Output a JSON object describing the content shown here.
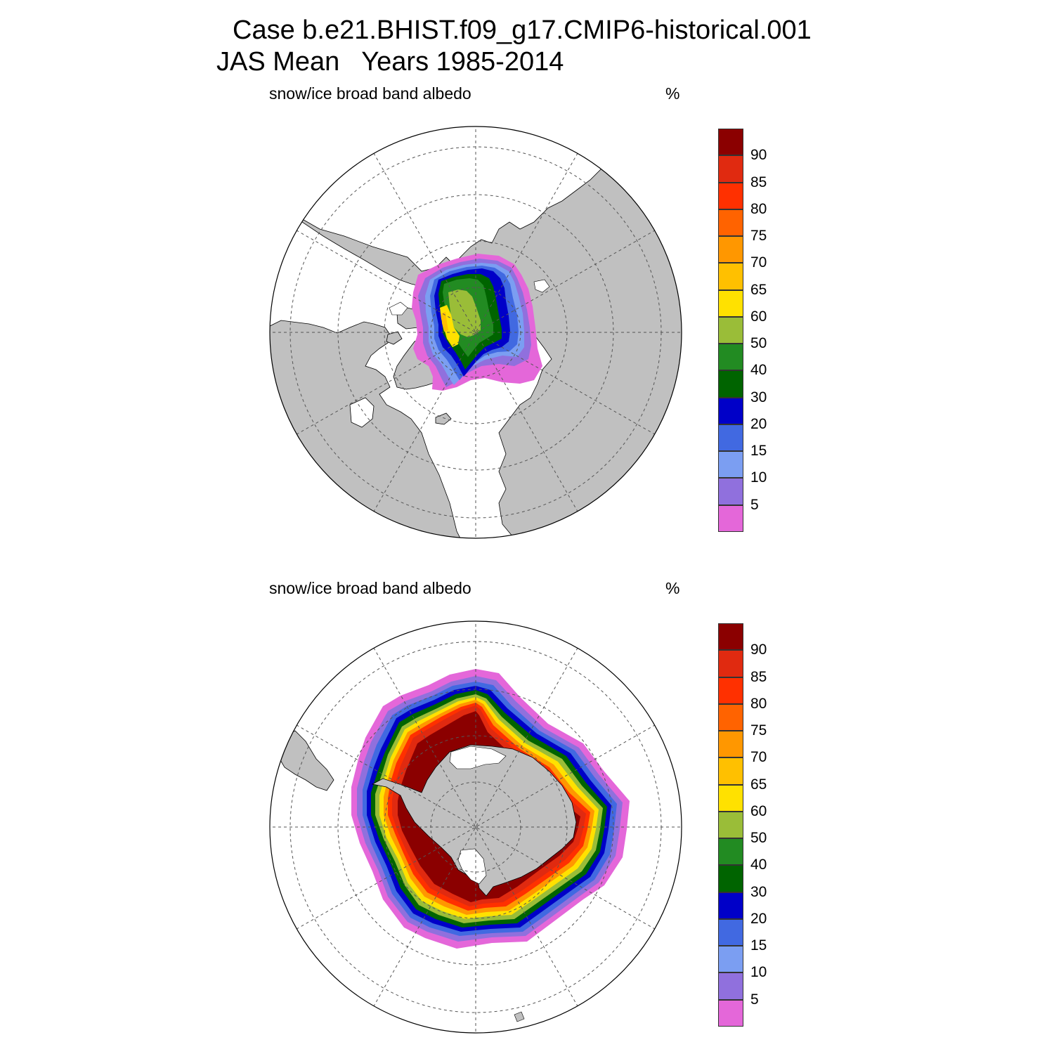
{
  "header": {
    "title_line1": "Case b.e21.BHIST.f09_g17.CMIP6-historical.001",
    "title_line2": "JAS Mean   Years 1985-2014"
  },
  "panels": [
    {
      "hemisphere": "north",
      "variable_label": "snow/ice broad band albedo",
      "units": "%"
    },
    {
      "hemisphere": "south",
      "variable_label": "snow/ice broad band albedo",
      "units": "%"
    }
  ],
  "colorbar": {
    "labels": [
      "5",
      "10",
      "15",
      "20",
      "30",
      "40",
      "50",
      "60",
      "65",
      "70",
      "75",
      "80",
      "85",
      "90"
    ],
    "colors": [
      "#e467d9",
      "#9070dd",
      "#7b9ef2",
      "#4169e1",
      "#0000c8",
      "#006400",
      "#228b22",
      "#9abd38",
      "#ffe100",
      "#ffc000",
      "#ff9700",
      "#ff6300",
      "#ff3000",
      "#e02a10",
      "#8b0000"
    ]
  },
  "colors": {
    "land": "#c0c0c0",
    "ocean": "#ffffff",
    "grid": "#555555"
  }
}
